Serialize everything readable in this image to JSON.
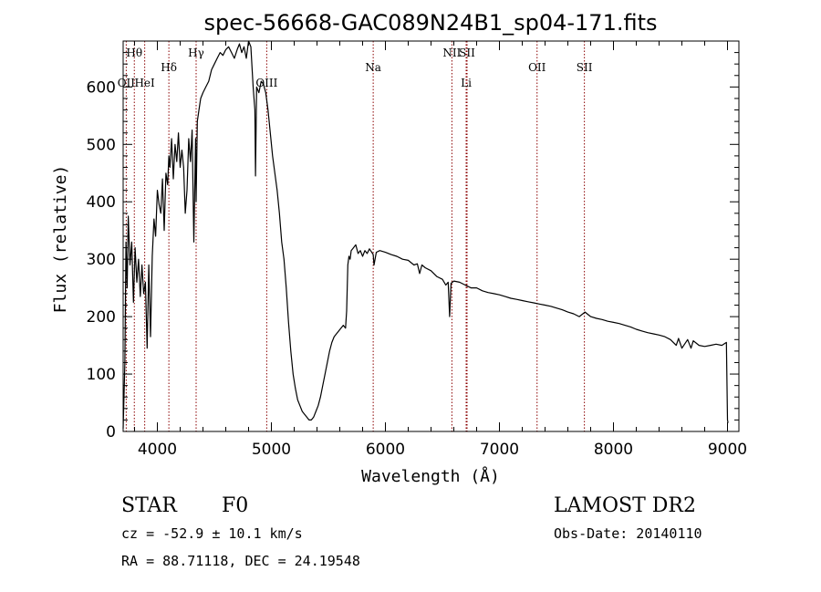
{
  "chart_data": {
    "type": "line",
    "title": "spec-56668-GAC089N24B1_sp04-171.fits",
    "xlabel": "Wavelength (Å)",
    "ylabel": "Flux (relative)",
    "xlim": [
      3700,
      9100
    ],
    "ylim": [
      0,
      680
    ],
    "x_ticks": [
      4000,
      5000,
      6000,
      7000,
      8000,
      9000
    ],
    "y_ticks": [
      0,
      100,
      200,
      300,
      400,
      500,
      600
    ],
    "grid": false,
    "series": [
      {
        "x": [
          3700,
          3715,
          3725,
          3735,
          3745,
          3760,
          3775,
          3790,
          3805,
          3820,
          3835,
          3850,
          3865,
          3880,
          3895,
          3910,
          3925,
          3940,
          3955,
          3970,
          3985,
          4000,
          4015,
          4030,
          4045,
          4060,
          4075,
          4090,
          4101,
          4110,
          4125,
          4140,
          4155,
          4170,
          4185,
          4200,
          4215,
          4230,
          4245,
          4260,
          4275,
          4290,
          4305,
          4320,
          4335,
          4340,
          4350,
          4365,
          4380,
          4400,
          4425,
          4450,
          4475,
          4500,
          4525,
          4550,
          4575,
          4600,
          4625,
          4650,
          4675,
          4700,
          4720,
          4740,
          4760,
          4780,
          4800,
          4820,
          4840,
          4855,
          4861,
          4870,
          4890,
          4910,
          4930,
          4950,
          4970,
          4990,
          5010,
          5030,
          5050,
          5070,
          5090,
          5110,
          5130,
          5150,
          5170,
          5190,
          5210,
          5230,
          5250,
          5270,
          5290,
          5310,
          5330,
          5350,
          5370,
          5390,
          5410,
          5430,
          5450,
          5470,
          5490,
          5510,
          5530,
          5550,
          5570,
          5590,
          5610,
          5630,
          5650,
          5660,
          5670,
          5680,
          5690,
          5700,
          5720,
          5740,
          5760,
          5780,
          5800,
          5820,
          5840,
          5860,
          5880,
          5893,
          5900,
          5920,
          5950,
          6000,
          6050,
          6100,
          6150,
          6200,
          6250,
          6280,
          6300,
          6320,
          6350,
          6400,
          6450,
          6500,
          6530,
          6550,
          6563,
          6575,
          6600,
          6650,
          6700,
          6750,
          6800,
          6850,
          6900,
          6950,
          7000,
          7050,
          7100,
          7150,
          7200,
          7250,
          7300,
          7350,
          7400,
          7450,
          7500,
          7550,
          7600,
          7650,
          7700,
          7750,
          7800,
          7850,
          7900,
          7950,
          8000,
          8050,
          8100,
          8150,
          8200,
          8250,
          8300,
          8350,
          8400,
          8450,
          8500,
          8550,
          8570,
          8600,
          8650,
          8680,
          8700,
          8750,
          8800,
          8850,
          8900,
          8950,
          8990,
          9000,
          9005
        ],
        "y": [
          5,
          120,
          330,
          250,
          375,
          290,
          330,
          225,
          320,
          260,
          300,
          235,
          290,
          240,
          260,
          145,
          290,
          165,
          305,
          370,
          340,
          420,
          395,
          380,
          440,
          350,
          450,
          430,
          480,
          460,
          510,
          440,
          500,
          470,
          520,
          460,
          490,
          460,
          380,
          420,
          510,
          470,
          525,
          330,
          510,
          400,
          540,
          560,
          580,
          590,
          600,
          610,
          630,
          640,
          650,
          660,
          655,
          665,
          670,
          660,
          650,
          665,
          675,
          660,
          670,
          650,
          680,
          670,
          600,
          560,
          445,
          600,
          590,
          610,
          605,
          590,
          560,
          520,
          480,
          450,
          420,
          380,
          330,
          300,
          250,
          190,
          140,
          100,
          75,
          55,
          45,
          35,
          30,
          25,
          20,
          20,
          25,
          35,
          45,
          60,
          80,
          100,
          120,
          140,
          155,
          165,
          170,
          175,
          180,
          185,
          180,
          210,
          290,
          305,
          300,
          315,
          320,
          325,
          310,
          315,
          305,
          315,
          310,
          318,
          312,
          308,
          290,
          312,
          315,
          312,
          308,
          305,
          300,
          298,
          290,
          292,
          275,
          290,
          285,
          280,
          270,
          265,
          255,
          260,
          200,
          258,
          262,
          260,
          255,
          250,
          250,
          245,
          242,
          240,
          238,
          235,
          232,
          230,
          228,
          226,
          224,
          222,
          220,
          218,
          215,
          212,
          208,
          205,
          200,
          208,
          200,
          197,
          195,
          192,
          190,
          188,
          185,
          182,
          178,
          175,
          172,
          170,
          168,
          165,
          160,
          150,
          162,
          145,
          160,
          145,
          158,
          150,
          148,
          150,
          152,
          150,
          155,
          20,
          15
        ]
      }
    ],
    "annotations": [
      {
        "label": "Hθ",
        "x": 3798,
        "row": 1
      },
      {
        "label": "OII",
        "x": 3727,
        "row": 3
      },
      {
        "label": "HeI",
        "x": 3889,
        "row": 3
      },
      {
        "label": "Hδ",
        "x": 4101,
        "row": 2
      },
      {
        "label": "Hγ",
        "x": 4340,
        "row": 1
      },
      {
        "label": "OIII",
        "x": 4959,
        "row": 3
      },
      {
        "label": "Na",
        "x": 5893,
        "row": 2
      },
      {
        "label": "NII",
        "x": 6583,
        "row": 1
      },
      {
        "label": "SII",
        "x": 6716,
        "row": 1
      },
      {
        "label": "Li",
        "x": 6708,
        "row": 3
      },
      {
        "label": "OII",
        "x": 7330,
        "row": 2
      },
      {
        "label": "SII",
        "x": 7745,
        "row": 2
      }
    ],
    "line_style": {
      "color": "#8b0000"
    }
  },
  "info": {
    "class": "STAR",
    "subclass": "F0",
    "survey": "LAMOST DR2",
    "cz": "cz = -52.9 ± 10.1 km/s",
    "obs_date": "Obs-Date: 20140110",
    "coords": "RA =  88.71118, DEC =  24.19548"
  }
}
